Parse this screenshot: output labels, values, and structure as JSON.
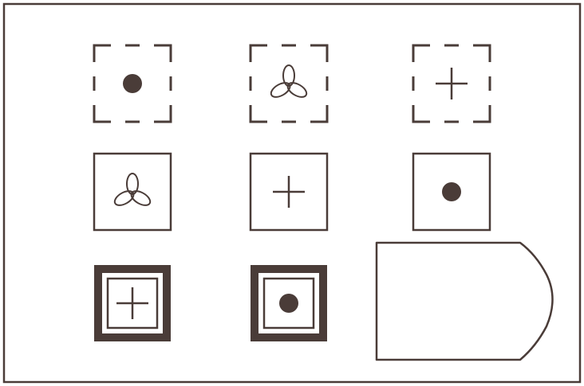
{
  "colors": {
    "ink": "#4a3c38",
    "paper": "#ffffff"
  },
  "grid": [
    [
      {
        "frame": "dashed",
        "symbol": "dot"
      },
      {
        "frame": "dashed",
        "symbol": "trefoil"
      },
      {
        "frame": "dashed",
        "symbol": "cross"
      }
    ],
    [
      {
        "frame": "solid",
        "symbol": "trefoil"
      },
      {
        "frame": "solid",
        "symbol": "cross"
      },
      {
        "frame": "solid",
        "symbol": "dot"
      }
    ],
    [
      {
        "frame": "bold",
        "symbol": "cross"
      },
      {
        "frame": "bold",
        "symbol": "dot"
      },
      {
        "frame": "answer-tag",
        "symbol": "none"
      }
    ]
  ]
}
